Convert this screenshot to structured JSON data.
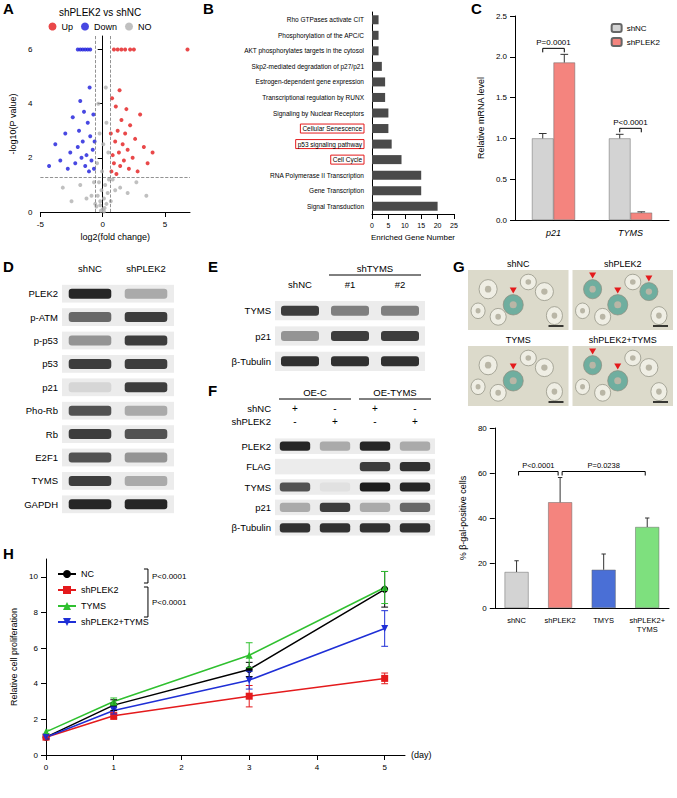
{
  "chart_data": [
    {
      "panel": "A",
      "type": "scatter",
      "title": "shPLEK2 vs shNC",
      "x_label": "log2(fold change)",
      "y_label": "-log10(P value)",
      "xlim": [
        -5,
        7
      ],
      "xticks": [
        -5,
        0,
        5
      ],
      "ylim": [
        0,
        6.5
      ],
      "yticks": [
        0,
        2,
        4,
        6
      ],
      "x_thresholds": [
        -0.58,
        0.58
      ],
      "y_threshold": 1.3,
      "legend": "top",
      "grid": false,
      "marker": "circle",
      "series": [
        {
          "name": "Up",
          "color": "#e41a1c",
          "values": [
            [
              0.7,
              1.5
            ],
            [
              0.8,
              2.1
            ],
            [
              0.9,
              1.8
            ],
            [
              1.0,
              2.6
            ],
            [
              1.1,
              1.4
            ],
            [
              1.2,
              3.0
            ],
            [
              1.3,
              2.2
            ],
            [
              1.4,
              1.7
            ],
            [
              1.5,
              3.4
            ],
            [
              1.6,
              2.5
            ],
            [
              1.7,
              1.9
            ],
            [
              1.8,
              2.9
            ],
            [
              1.9,
              3.8
            ],
            [
              2.0,
              2.3
            ],
            [
              2.1,
              1.6
            ],
            [
              2.2,
              3.2
            ],
            [
              2.4,
              2.0
            ],
            [
              2.6,
              2.7
            ],
            [
              2.8,
              1.5
            ],
            [
              3.0,
              3.6
            ],
            [
              3.3,
              2.4
            ],
            [
              3.6,
              1.8
            ],
            [
              4.0,
              2.2
            ],
            [
              0.75,
              4.2
            ],
            [
              1.05,
              3.9
            ],
            [
              0.9,
              6
            ],
            [
              1.2,
              6
            ],
            [
              1.5,
              6
            ],
            [
              1.8,
              6
            ],
            [
              2.2,
              6
            ],
            [
              2.5,
              6
            ],
            [
              6.8,
              6
            ],
            [
              0.65,
              2.9
            ],
            [
              1.35,
              4.5
            ]
          ]
        },
        {
          "name": "Down",
          "color": "#1a1adb",
          "values": [
            [
              -0.7,
              1.6
            ],
            [
              -0.8,
              2.3
            ],
            [
              -0.9,
              1.9
            ],
            [
              -1.0,
              2.8
            ],
            [
              -1.1,
              1.5
            ],
            [
              -1.2,
              3.3
            ],
            [
              -1.3,
              2.1
            ],
            [
              -1.4,
              1.7
            ],
            [
              -1.5,
              3.7
            ],
            [
              -1.6,
              2.6
            ],
            [
              -1.7,
              2.0
            ],
            [
              -1.8,
              4.1
            ],
            [
              -1.9,
              3.0
            ],
            [
              -2.0,
              2.4
            ],
            [
              -2.2,
              1.8
            ],
            [
              -2.4,
              3.5
            ],
            [
              -2.6,
              2.2
            ],
            [
              -2.8,
              1.6
            ],
            [
              -3.0,
              2.9
            ],
            [
              -3.4,
              1.9
            ],
            [
              -3.8,
              2.5
            ],
            [
              -4.3,
              1.7
            ],
            [
              -1.05,
              4.6
            ],
            [
              -0.75,
              3.6
            ],
            [
              -2.0,
              6
            ],
            [
              -1.8,
              6
            ],
            [
              -1.6,
              6
            ],
            [
              -1.4,
              6
            ],
            [
              -1.2,
              6
            ],
            [
              -1.0,
              6
            ],
            [
              -0.65,
              2.6
            ]
          ]
        },
        {
          "name": "NO",
          "color": "#b0b0b0",
          "values": [
            [
              -0.5,
              0.2
            ],
            [
              -0.4,
              0.6
            ],
            [
              -0.3,
              1.1
            ],
            [
              -0.2,
              0.4
            ],
            [
              -0.1,
              0.8
            ],
            [
              0,
              0.1
            ],
            [
              0.1,
              0.5
            ],
            [
              0.2,
              1.0
            ],
            [
              0.3,
              0.3
            ],
            [
              0.4,
              0.7
            ],
            [
              0.5,
              1.2
            ],
            [
              -0.45,
              1.8
            ],
            [
              0.45,
              2.2
            ],
            [
              -0.25,
              2.9
            ],
            [
              0.3,
              3.3
            ],
            [
              -0.15,
              0.05
            ],
            [
              0.15,
              0.15
            ],
            [
              -0.6,
              0.3
            ],
            [
              0.65,
              0.4
            ],
            [
              -0.9,
              0.6
            ],
            [
              1.0,
              0.8
            ],
            [
              -1.3,
              0.5
            ],
            [
              1.4,
              0.9
            ],
            [
              -1.8,
              1.0
            ],
            [
              2.0,
              0.7
            ],
            [
              -2.5,
              0.4
            ],
            [
              2.7,
              1.1
            ],
            [
              -3.2,
              0.9
            ],
            [
              3.5,
              0.6
            ],
            [
              -0.05,
              1.5
            ],
            [
              0.05,
              2.5
            ],
            [
              -0.35,
              4.0
            ],
            [
              0.25,
              4.6
            ],
            [
              -0.7,
              1.1
            ],
            [
              0.8,
              1.2
            ],
            [
              0.1,
              0.02
            ],
            [
              -0.2,
              0.25
            ]
          ]
        }
      ]
    },
    {
      "panel": "B",
      "type": "bar",
      "orientation": "horizontal",
      "categories": [
        "Rho GTPases activate CIT",
        "Phosphorylation of the APC/C",
        "AKT phosphorylates targets in the cytosol",
        "Skp2-mediated degradation of p27/p21",
        "Estrogen-dependent gene expression",
        "Transcriptional regulation by RUNX",
        "Signaling by Nuclear Receptors",
        "Cellular Senescence",
        "p53 signaling pathway",
        "Cell Cycle",
        "RNA Polymerase II Transcription",
        "Gene Transcription",
        "Signal Transduction"
      ],
      "values": [
        2,
        2,
        2,
        3,
        4,
        4,
        5,
        5,
        6,
        9,
        15,
        15,
        20
      ],
      "color": "#4a4a4a",
      "highlighted": [
        "Cellular Senescence",
        "p53 signaling pathway",
        "Cell Cycle"
      ],
      "x_label": "Enriched Gene Number",
      "xlim": [
        0,
        25
      ],
      "xticks": [
        0,
        5,
        10,
        15,
        20,
        25
      ],
      "grid": false
    },
    {
      "panel": "C",
      "type": "bar",
      "categories": [
        "p21",
        "TYMS"
      ],
      "series": [
        {
          "name": "shNC",
          "color": "#d3d3d3",
          "values": [
            1.0,
            1.0
          ],
          "errors": [
            0.06,
            0.05
          ]
        },
        {
          "name": "shPLEK2",
          "color": "#f4847e",
          "values": [
            1.93,
            0.09
          ],
          "errors": [
            0.1,
            0.01
          ]
        }
      ],
      "y_label": "Relative mRNA level",
      "ylim": [
        0,
        2.5
      ],
      "yticks": [
        {
          "value": 0,
          "label": "0.0"
        },
        0.5,
        {
          "value": 1,
          "label": "1.0"
        },
        1.5,
        {
          "value": 2,
          "label": "2.0"
        },
        2.5
      ],
      "annotations": [
        {
          "category": "p21",
          "text": "P=0.0001"
        },
        {
          "category": "TYMS",
          "text": "P<0.0001"
        }
      ],
      "legend": "top-right",
      "grid": false
    },
    {
      "type": "bar",
      "categories": [
        "shNC",
        "shPLEK2",
        "TMYS",
        "shPLEK2+TYMS"
      ],
      "values": [
        16,
        47,
        17,
        36
      ],
      "errors": [
        5,
        11,
        7,
        4
      ],
      "colors": [
        "#d3d3d3",
        "#f4847e",
        "#4a6fd6",
        "#7ee07e"
      ],
      "y_label": "% β-gal-positive cells",
      "ylim": [
        0,
        80
      ],
      "yticks": [
        0,
        20,
        40,
        60,
        80
      ],
      "annotations": [
        {
          "from": "shNC",
          "to": "shPLEK2",
          "text": "P<0.0001"
        },
        {
          "from": "shPLEK2",
          "to": "shPLEK2+TYMS",
          "text": "P=0.0238"
        }
      ],
      "grid": false
    },
    {
      "panel": "H",
      "type": "line",
      "x": [
        0,
        1,
        3,
        5
      ],
      "x_label": "(day)",
      "y_label": "Relative cell proliferation",
      "xlim": [
        0,
        5.3
      ],
      "xticks": [
        0,
        1,
        2,
        3,
        4,
        5
      ],
      "ylim": [
        0,
        11
      ],
      "yticks": [
        0,
        2,
        4,
        6,
        8,
        10
      ],
      "series": [
        {
          "name": "NC",
          "color": "#000000",
          "marker": "circle",
          "values": [
            1.0,
            2.8,
            4.8,
            9.3
          ],
          "errors": [
            0.1,
            0.3,
            0.4,
            1.0
          ]
        },
        {
          "name": "shPLEK2",
          "color": "#e41a1c",
          "marker": "square",
          "values": [
            1.0,
            2.2,
            3.3,
            4.3
          ],
          "errors": [
            0.1,
            0.2,
            0.6,
            0.3
          ]
        },
        {
          "name": "TYMS",
          "color": "#2fc02f",
          "marker": "triangle",
          "values": [
            1.3,
            3.0,
            5.6,
            9.4
          ],
          "errors": [
            0.1,
            0.2,
            0.7,
            0.9
          ]
        },
        {
          "name": "shPLEK2+TYMS",
          "color": "#1f2fd6",
          "marker": "triangle-down",
          "values": [
            1.0,
            2.5,
            4.2,
            7.1
          ],
          "errors": [
            0.1,
            0.2,
            0.5,
            1.0
          ]
        }
      ],
      "annotations": [
        {
          "from": "NC",
          "to": "shPLEK2",
          "text": "P<0.0001"
        },
        {
          "from": "shPLEK2",
          "to": "shPLEK2+TYMS",
          "text": "P<0.0001"
        }
      ],
      "legend": "top-left",
      "grid": false
    }
  ],
  "blots": [
    {
      "panel": "D",
      "lanes": [
        {
          "label": "shNC"
        },
        {
          "label": "shPLEK2"
        }
      ],
      "rows": [
        {
          "label": "PLEK2",
          "intensity": [
            0.9,
            0.3
          ]
        },
        {
          "label": "p-ATM",
          "intensity": [
            0.6,
            0.8
          ]
        },
        {
          "label": "p-p53",
          "intensity": [
            0.4,
            0.8
          ]
        },
        {
          "label": "p53",
          "intensity": [
            0.8,
            0.8
          ]
        },
        {
          "label": "p21",
          "intensity": [
            0.1,
            0.8
          ]
        },
        {
          "label": "Pho-Rb",
          "intensity": [
            0.7,
            0.3
          ]
        },
        {
          "label": "Rb",
          "intensity": [
            0.8,
            0.7
          ]
        },
        {
          "label": "E2F1",
          "intensity": [
            0.7,
            0.4
          ]
        },
        {
          "label": "TYMS",
          "intensity": [
            0.8,
            0.3
          ]
        },
        {
          "label": "GAPDH",
          "intensity": [
            0.9,
            0.9
          ]
        }
      ]
    },
    {
      "panel": "E",
      "lanes": [
        {
          "label": "shNC"
        },
        {
          "label": "#1",
          "group": "shTYMS"
        },
        {
          "label": "#2",
          "group": "shTYMS"
        }
      ],
      "rows": [
        {
          "label": "TYMS",
          "intensity": [
            0.8,
            0.5,
            0.5
          ]
        },
        {
          "label": "p21",
          "intensity": [
            0.4,
            0.8,
            0.8
          ]
        },
        {
          "label": "β-Tubulin",
          "intensity": [
            0.85,
            0.85,
            0.85
          ]
        }
      ]
    },
    {
      "panel": "F",
      "lanes": [
        {
          "group": "OE-C"
        },
        {
          "group": "OE-C"
        },
        {
          "group": "OE-TYMS"
        },
        {
          "group": "OE-TYMS"
        }
      ],
      "condition_rows": [
        {
          "label": "shNC",
          "marks": [
            "+",
            "-",
            "+",
            "-"
          ]
        },
        {
          "label": "shPLEK2",
          "marks": [
            "-",
            "+",
            "-",
            "+"
          ]
        }
      ],
      "rows": [
        {
          "label": "PLEK2",
          "intensity": [
            0.9,
            0.3,
            0.9,
            0.3
          ]
        },
        {
          "label": "FLAG",
          "intensity": [
            0,
            0,
            0.8,
            0.85
          ]
        },
        {
          "label": "TYMS",
          "intensity": [
            0.7,
            0.05,
            0.95,
            0.9
          ]
        },
        {
          "label": "p21",
          "intensity": [
            0.3,
            0.8,
            0.3,
            0.6
          ]
        },
        {
          "label": "β-Tubulin",
          "intensity": [
            0.85,
            0.85,
            0.85,
            0.85
          ]
        }
      ]
    }
  ],
  "micrographs": {
    "panel": "G",
    "images": [
      {
        "label": "shNC",
        "arrows": 1
      },
      {
        "label": "shPLEK2",
        "arrows": 3
      },
      {
        "label": "TYMS",
        "arrows": 1
      },
      {
        "label": "shPLEK2+TYMS",
        "arrows": 2
      }
    ]
  }
}
